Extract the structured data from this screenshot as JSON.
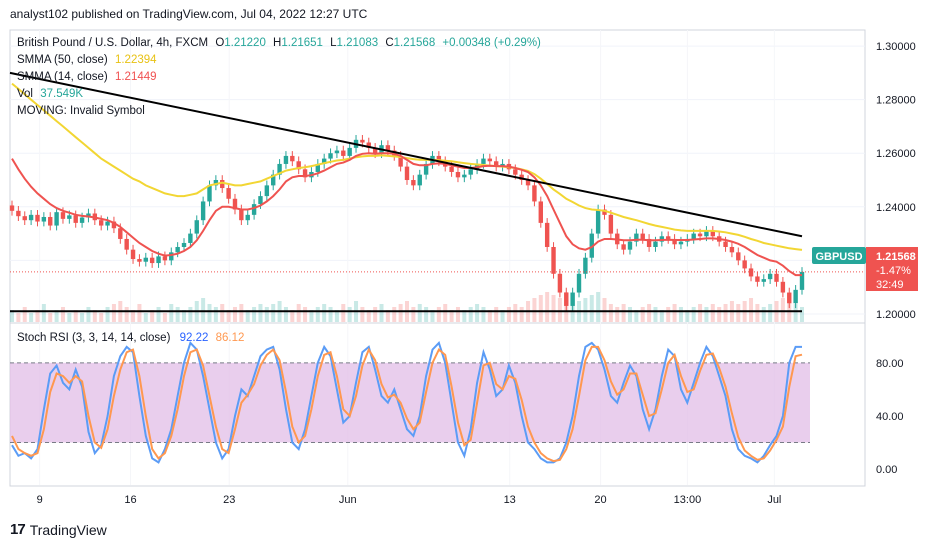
{
  "header": {
    "published": "analyst102 published on TradingView.com, Jul 04, 2022 12:27 UTC"
  },
  "brand": {
    "logo_text": "17",
    "name": "TradingView"
  },
  "chart_data": [
    {
      "type": "line",
      "panel": "price",
      "symbol_line": {
        "name": "British Pound / U.S. Dollar, 4h, FXCM",
        "open_label": "O",
        "open": "1.21220",
        "high_label": "H",
        "high": "1.21651",
        "low_label": "L",
        "low": "1.21083",
        "close_label": "C",
        "close": "1.21568",
        "change": "+0.00348 (+0.29%)"
      },
      "indicators": [
        {
          "label": "SMMA (50, close)",
          "value": "1.22394",
          "color": "#e8c214"
        },
        {
          "label": "SMMA (14, close)",
          "value": "1.21449",
          "color": "#f05151"
        },
        {
          "label": "Vol",
          "value": "37.549K",
          "color": "#26a69a"
        },
        {
          "label": "MOVING: Invalid Symbol",
          "value": "",
          "color": "#131722"
        }
      ],
      "y_ticks": [
        "1.30000",
        "1.28000",
        "1.26000",
        "1.24000",
        "1.22000",
        "1.20000"
      ],
      "ylim": [
        1.197,
        1.306
      ],
      "x_ticks": [
        "9",
        "16",
        "23",
        "Jun",
        "13",
        "20",
        "13:00",
        "Jul"
      ],
      "price_badge": {
        "symbol": "GBPUSD",
        "price": "1.21568",
        "change": "-1.47%",
        "countdown": "32:49"
      },
      "colors": {
        "up": "#26a69a",
        "down": "#ef5350",
        "smma50": "#f2d633",
        "smma14": "#ef5350",
        "trend": "#000000"
      },
      "closes": [
        1.2385,
        1.2365,
        1.235,
        1.237,
        1.2345,
        1.2362,
        1.233,
        1.238,
        1.2355,
        1.2368,
        1.234,
        1.236,
        1.2375,
        1.235,
        1.233,
        1.2345,
        1.232,
        1.228,
        1.224,
        1.2205,
        1.2195,
        1.221,
        1.219,
        1.2215,
        1.22,
        1.223,
        1.225,
        1.2265,
        1.23,
        1.235,
        1.242,
        1.248,
        1.25,
        1.247,
        1.243,
        1.239,
        1.235,
        1.237,
        1.241,
        1.244,
        1.248,
        1.252,
        1.256,
        1.259,
        1.257,
        1.254,
        1.251,
        1.253,
        1.256,
        1.258,
        1.26,
        1.261,
        1.259,
        1.262,
        1.265,
        1.264,
        1.262,
        1.26,
        1.263,
        1.261,
        1.259,
        1.255,
        1.25,
        1.248,
        1.252,
        1.256,
        1.259,
        1.257,
        1.255,
        1.253,
        1.251,
        1.252,
        1.254,
        1.256,
        1.258,
        1.257,
        1.255,
        1.256,
        1.254,
        1.252,
        1.25,
        1.248,
        1.242,
        1.234,
        1.225,
        1.215,
        1.208,
        1.203,
        1.208,
        1.215,
        1.221,
        1.23,
        1.239,
        1.237,
        1.23,
        1.226,
        1.224,
        1.227,
        1.23,
        1.228,
        1.225,
        1.227,
        1.229,
        1.228,
        1.226,
        1.227,
        1.228,
        1.23,
        1.229,
        1.231,
        1.229,
        1.227,
        1.225,
        1.223,
        1.22,
        1.217,
        1.214,
        1.212,
        1.213,
        1.215,
        1.212,
        1.208,
        1.204,
        1.209,
        1.2157
      ],
      "smma50": [
        1.286,
        1.284,
        1.282,
        1.28,
        1.278,
        1.276,
        1.274,
        1.272,
        1.27,
        1.268,
        1.266,
        1.264,
        1.262,
        1.26,
        1.258,
        1.2565,
        1.255,
        1.2535,
        1.252,
        1.2505,
        1.2495,
        1.248,
        1.247,
        1.246,
        1.245,
        1.2445,
        1.244,
        1.244,
        1.2445,
        1.245,
        1.2465,
        1.248,
        1.2485,
        1.249,
        1.2485,
        1.248,
        1.248,
        1.2485,
        1.249,
        1.2495,
        1.2505,
        1.2515,
        1.2525,
        1.2535,
        1.254,
        1.2545,
        1.2548,
        1.2552,
        1.2557,
        1.2563,
        1.2568,
        1.2573,
        1.2575,
        1.258,
        1.2585,
        1.2588,
        1.259,
        1.259,
        1.2592,
        1.259,
        1.2588,
        1.2586,
        1.2582,
        1.2578,
        1.2576,
        1.2575,
        1.2575,
        1.2574,
        1.2572,
        1.257,
        1.2566,
        1.2563,
        1.256,
        1.2558,
        1.2556,
        1.2554,
        1.2552,
        1.255,
        1.2548,
        1.2545,
        1.254,
        1.2534,
        1.2522,
        1.2505,
        1.2485,
        1.2465,
        1.2448,
        1.243,
        1.2418,
        1.2405,
        1.2395,
        1.239,
        1.2388,
        1.2385,
        1.2378,
        1.237,
        1.2362,
        1.2356,
        1.235,
        1.2343,
        1.2336,
        1.233,
        1.2325,
        1.232,
        1.2315,
        1.2312,
        1.231,
        1.231,
        1.231,
        1.231,
        1.231,
        1.2308,
        1.2305,
        1.23,
        1.2295,
        1.2288,
        1.228,
        1.2273,
        1.2265,
        1.226,
        1.2255,
        1.225,
        1.2245,
        1.2242,
        1.2239
      ],
      "smma14": [
        1.258,
        1.254,
        1.2505,
        1.2475,
        1.245,
        1.243,
        1.241,
        1.2395,
        1.2385,
        1.2378,
        1.237,
        1.2366,
        1.2364,
        1.236,
        1.2355,
        1.235,
        1.234,
        1.2325,
        1.2305,
        1.2285,
        1.2265,
        1.225,
        1.2235,
        1.2225,
        1.2218,
        1.222,
        1.2225,
        1.2235,
        1.225,
        1.2275,
        1.231,
        1.235,
        1.2385,
        1.24,
        1.24,
        1.2395,
        1.239,
        1.239,
        1.2395,
        1.2405,
        1.242,
        1.244,
        1.2465,
        1.2495,
        1.251,
        1.2515,
        1.2515,
        1.2518,
        1.2525,
        1.2535,
        1.2548,
        1.256,
        1.2565,
        1.2575,
        1.259,
        1.2598,
        1.26,
        1.2598,
        1.26,
        1.26,
        1.2598,
        1.259,
        1.2575,
        1.256,
        1.2555,
        1.2555,
        1.256,
        1.2562,
        1.256,
        1.2555,
        1.255,
        1.2545,
        1.2545,
        1.2548,
        1.2552,
        1.2553,
        1.2552,
        1.2552,
        1.255,
        1.2545,
        1.2538,
        1.253,
        1.251,
        1.248,
        1.244,
        1.239,
        1.234,
        1.229,
        1.226,
        1.2245,
        1.224,
        1.225,
        1.227,
        1.228,
        1.228,
        1.2278,
        1.2275,
        1.2275,
        1.2277,
        1.2277,
        1.2275,
        1.2275,
        1.2276,
        1.2277,
        1.2276,
        1.2276,
        1.2276,
        1.2278,
        1.228,
        1.2282,
        1.2282,
        1.228,
        1.2276,
        1.227,
        1.2262,
        1.225,
        1.2235,
        1.222,
        1.221,
        1.22,
        1.2195,
        1.218,
        1.216,
        1.2145,
        1.2145
      ],
      "volume_rel": [
        0.4,
        0.3,
        0.5,
        0.3,
        0.4,
        0.6,
        0.3,
        0.4,
        0.5,
        0.3,
        0.4,
        0.3,
        0.5,
        0.4,
        0.3,
        0.5,
        0.6,
        0.7,
        0.5,
        0.4,
        0.6,
        0.3,
        0.4,
        0.5,
        0.3,
        0.6,
        0.5,
        0.4,
        0.5,
        0.7,
        0.8,
        0.6,
        0.5,
        0.6,
        0.4,
        0.5,
        0.6,
        0.4,
        0.5,
        0.6,
        0.5,
        0.6,
        0.7,
        0.5,
        0.4,
        0.6,
        0.5,
        0.4,
        0.5,
        0.6,
        0.5,
        0.4,
        0.6,
        0.5,
        0.7,
        0.5,
        0.4,
        0.5,
        0.6,
        0.4,
        0.5,
        0.6,
        0.7,
        0.5,
        0.6,
        0.5,
        0.4,
        0.5,
        0.6,
        0.4,
        0.5,
        0.4,
        0.5,
        0.6,
        0.5,
        0.4,
        0.5,
        0.4,
        0.5,
        0.6,
        0.5,
        0.7,
        0.8,
        0.9,
        1.0,
        0.9,
        0.8,
        1.0,
        0.9,
        0.7,
        0.8,
        0.9,
        1.0,
        0.8,
        0.6,
        0.5,
        0.6,
        0.5,
        0.4,
        0.5,
        0.6,
        0.5,
        0.4,
        0.5,
        0.6,
        0.5,
        0.4,
        0.5,
        0.6,
        0.5,
        0.6,
        0.5,
        0.6,
        0.7,
        0.6,
        0.7,
        0.8,
        0.6,
        0.5,
        0.6,
        0.7,
        0.8,
        0.9,
        0.6,
        0.5
      ],
      "resistance_line": {
        "from": [
          0,
          1.29
        ],
        "to": [
          124,
          1.229
        ]
      },
      "support_line": {
        "from": [
          0,
          1.201
        ],
        "to": [
          124,
          1.201
        ]
      }
    },
    {
      "type": "line",
      "panel": "stoch_rsi",
      "title": "Stoch RSI (3, 3, 14, 14, close)",
      "k_value": "92.22",
      "d_value": "86.12",
      "colors": {
        "k": "#5b9cf6",
        "d": "#ff9850",
        "band": "#e1bee7"
      },
      "y_ticks": [
        "80.00",
        "40.00",
        "0.00"
      ],
      "ylim": [
        -12,
        110
      ],
      "band": [
        20,
        80
      ],
      "k": [
        18,
        10,
        12,
        8,
        15,
        45,
        72,
        78,
        65,
        60,
        75,
        62,
        28,
        12,
        18,
        40,
        70,
        85,
        92,
        88,
        55,
        25,
        8,
        5,
        15,
        30,
        55,
        80,
        95,
        90,
        70,
        45,
        20,
        8,
        15,
        40,
        60,
        55,
        70,
        85,
        90,
        92,
        75,
        45,
        20,
        15,
        30,
        55,
        80,
        92,
        85,
        60,
        35,
        40,
        65,
        88,
        92,
        75,
        55,
        50,
        60,
        45,
        30,
        25,
        40,
        70,
        90,
        95,
        80,
        50,
        20,
        10,
        30,
        65,
        88,
        75,
        55,
        60,
        78,
        65,
        40,
        20,
        15,
        8,
        5,
        5,
        8,
        20,
        40,
        70,
        92,
        95,
        90,
        75,
        55,
        50,
        65,
        78,
        70,
        45,
        30,
        45,
        70,
        90,
        85,
        60,
        50,
        65,
        80,
        92,
        85,
        70,
        55,
        30,
        15,
        10,
        8,
        5,
        10,
        18,
        25,
        40,
        80,
        92,
        92
      ],
      "d": [
        25,
        15,
        12,
        10,
        12,
        30,
        58,
        72,
        70,
        65,
        70,
        66,
        40,
        20,
        16,
        30,
        55,
        75,
        88,
        90,
        70,
        40,
        15,
        8,
        12,
        25,
        45,
        70,
        88,
        90,
        78,
        55,
        32,
        15,
        12,
        30,
        50,
        56,
        64,
        78,
        86,
        90,
        82,
        58,
        32,
        20,
        25,
        45,
        70,
        86,
        88,
        70,
        45,
        40,
        55,
        78,
        90,
        82,
        64,
        54,
        56,
        50,
        38,
        30,
        35,
        58,
        80,
        90,
        86,
        62,
        35,
        18,
        22,
        50,
        78,
        80,
        64,
        60,
        70,
        68,
        52,
        32,
        20,
        12,
        8,
        6,
        7,
        15,
        30,
        55,
        82,
        92,
        92,
        82,
        66,
        56,
        60,
        72,
        72,
        56,
        40,
        42,
        60,
        80,
        86,
        70,
        58,
        60,
        74,
        86,
        87,
        76,
        62,
        42,
        24,
        14,
        10,
        7,
        8,
        14,
        22,
        32,
        62,
        85,
        86.12
      ]
    }
  ]
}
